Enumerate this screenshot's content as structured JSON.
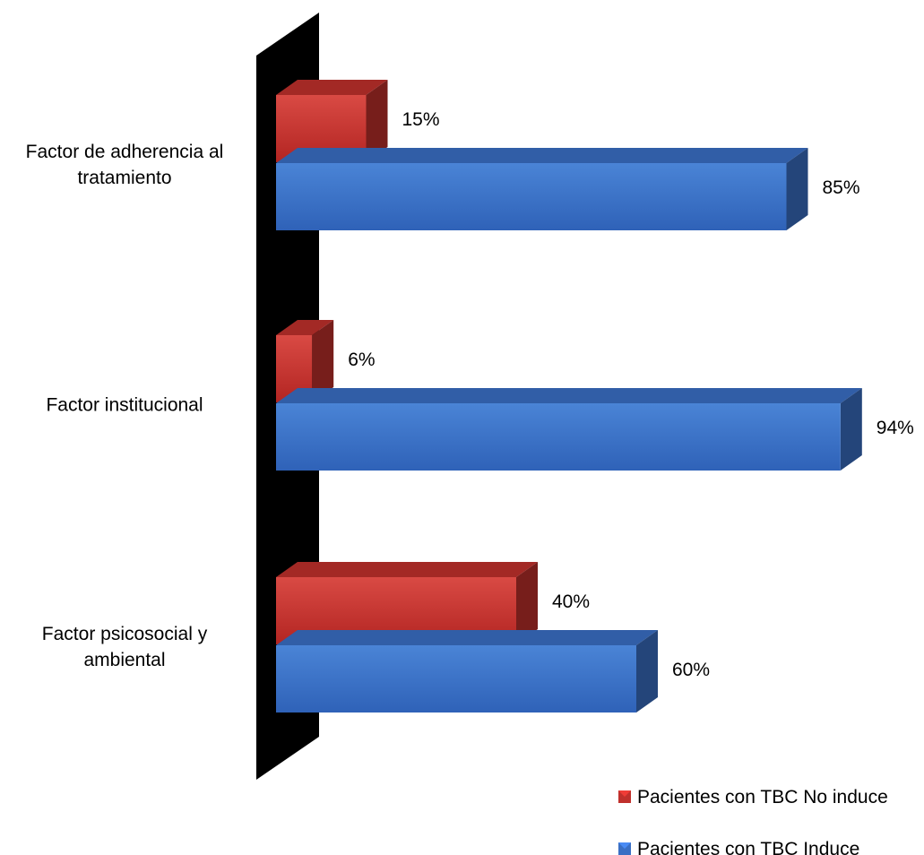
{
  "chart_data": {
    "type": "bar",
    "orientation": "horizontal",
    "style": "3d",
    "categories": [
      [
        "Factor de adherencia al",
        "tratamiento"
      ],
      [
        "Factor institucional"
      ],
      [
        "Factor psicosocial y",
        "ambiental"
      ]
    ],
    "series": [
      {
        "name": "Pacientes con TBC No induce",
        "color": "#c0302c",
        "values": [
          15,
          6,
          40
        ],
        "labels": [
          "15%",
          "6%",
          "40%"
        ]
      },
      {
        "name": "Pacientes con TBC Induce",
        "color": "#3a6fc4",
        "values": [
          85,
          94,
          60
        ],
        "labels": [
          "85%",
          "94%",
          "60%"
        ]
      }
    ],
    "unit": "%",
    "xlim": [
      0,
      100
    ],
    "legend_position": "bottom-right",
    "grid": false
  }
}
